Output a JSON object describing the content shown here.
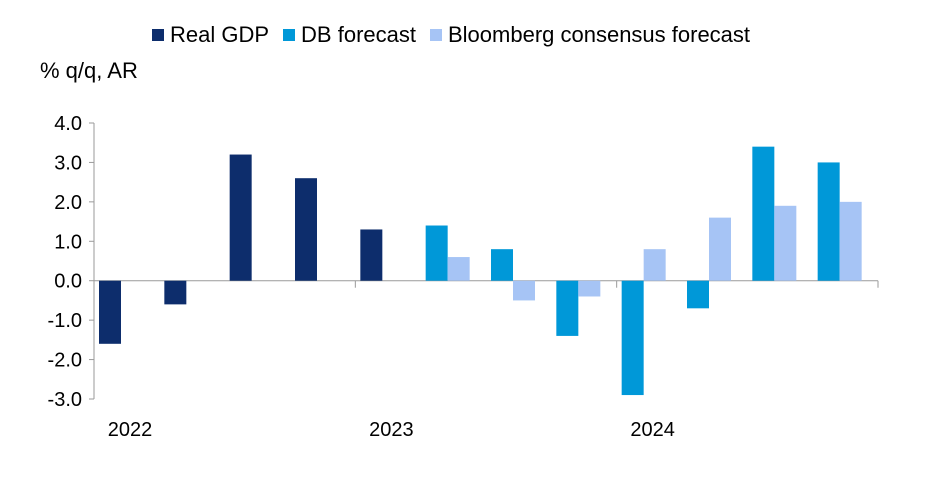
{
  "chart_data": {
    "type": "bar",
    "ylabel": "% q/q, AR",
    "ylim": [
      -3.0,
      4.0
    ],
    "yticks": [
      "4.0",
      "3.0",
      "2.0",
      "1.0",
      "0.0",
      "-1.0",
      "-2.0",
      "-3.0"
    ],
    "ytick_values": [
      4,
      3,
      2,
      1,
      0,
      -1,
      -2,
      -3
    ],
    "year_labels": [
      {
        "label": "2022",
        "index": 0
      },
      {
        "label": "2023",
        "index": 4
      },
      {
        "label": "2024",
        "index": 8
      }
    ],
    "quarters": 12,
    "legend_position": "top",
    "series": [
      {
        "name": "Real GDP",
        "color": "#0d2d6c",
        "values": [
          -1.6,
          -0.6,
          3.2,
          2.6,
          1.3,
          null,
          null,
          null,
          null,
          null,
          null,
          null
        ]
      },
      {
        "name": "DB forecast",
        "color": "#0098d8",
        "values": [
          null,
          null,
          null,
          null,
          null,
          1.4,
          0.8,
          -1.4,
          -2.9,
          -0.7,
          3.4,
          3.0
        ]
      },
      {
        "name": "Bloomberg consensus forecast",
        "color": "#a6c4f5",
        "values": [
          null,
          null,
          null,
          null,
          null,
          0.6,
          -0.5,
          -0.4,
          0.8,
          1.6,
          1.9,
          2.0
        ]
      }
    ]
  }
}
